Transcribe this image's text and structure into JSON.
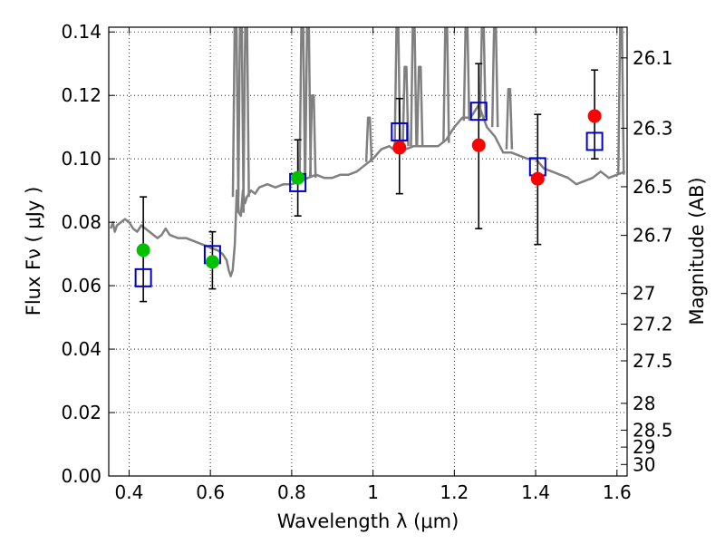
{
  "chart_data": {
    "type": "scatter",
    "xlabel": "Wavelength  λ (μm)",
    "ylabel": "Flux  Fν  ( μJy )",
    "y2label": "Magnitude (AB)",
    "xlim": [
      0.35,
      1.625
    ],
    "ylim": [
      0.0,
      0.1415
    ],
    "grid": true,
    "grid_style": "dotted",
    "x_ticks": [
      0.4,
      0.6,
      0.8,
      1.0,
      1.2,
      1.4,
      1.6
    ],
    "x_tick_labels": [
      "0.4",
      "0.6",
      "0.8",
      "1",
      "1.2",
      "1.4",
      "1.6"
    ],
    "y_ticks": [
      0.0,
      0.02,
      0.04,
      0.06,
      0.08,
      0.1,
      0.12,
      0.14
    ],
    "y_tick_labels": [
      "0.00",
      "0.02",
      "0.04",
      "0.06",
      "0.08",
      "0.10",
      "0.12",
      "0.14"
    ],
    "mag_ticks": [
      26.1,
      26.3,
      26.5,
      26.7,
      27,
      27.2,
      27.5,
      28,
      28.5,
      29,
      30
    ],
    "mag_tick_labels": [
      "26.1",
      "26.3",
      "26.5",
      "26.7",
      "27",
      "27.2",
      "27.5",
      "28",
      "28.5",
      "29",
      "30"
    ],
    "mag_zero_point": 23.9,
    "colors": {
      "spectrum": "#808080",
      "green_points": "#00c000",
      "red_points": "#ff0000",
      "model_boxes": "#0000cc",
      "error_bars": "#000000"
    },
    "series": [
      {
        "kind": "spectrum-line",
        "x": [
          0.355,
          0.36,
          0.365,
          0.37,
          0.38,
          0.39,
          0.4,
          0.41,
          0.42,
          0.43,
          0.44,
          0.45,
          0.46,
          0.47,
          0.48,
          0.49,
          0.5,
          0.52,
          0.54,
          0.56,
          0.58,
          0.6,
          0.62,
          0.63,
          0.64,
          0.645,
          0.65,
          0.655,
          0.66,
          0.665,
          0.67,
          0.675,
          0.68,
          0.685,
          0.69,
          0.7,
          0.71,
          0.72,
          0.74,
          0.76,
          0.78,
          0.8,
          0.82,
          0.84,
          0.86,
          0.88,
          0.9,
          0.92,
          0.94,
          0.96,
          0.98,
          1.0,
          1.02,
          1.04,
          1.05,
          1.06,
          1.08,
          1.1,
          1.12,
          1.14,
          1.16,
          1.18,
          1.2,
          1.22,
          1.24,
          1.26,
          1.28,
          1.3,
          1.32,
          1.34,
          1.36,
          1.38,
          1.4,
          1.42,
          1.44,
          1.46,
          1.48,
          1.5,
          1.52,
          1.54,
          1.56,
          1.58,
          1.6,
          1.62
        ],
        "y": [
          0.078,
          0.08,
          0.077,
          0.079,
          0.08,
          0.081,
          0.08,
          0.078,
          0.077,
          0.079,
          0.078,
          0.077,
          0.076,
          0.075,
          0.076,
          0.078,
          0.076,
          0.075,
          0.075,
          0.074,
          0.073,
          0.072,
          0.071,
          0.07,
          0.068,
          0.065,
          0.063,
          0.065,
          0.073,
          0.09,
          0.083,
          0.082,
          0.09,
          0.086,
          0.088,
          0.09,
          0.089,
          0.091,
          0.092,
          0.091,
          0.092,
          0.092,
          0.093,
          0.094,
          0.095,
          0.094,
          0.094,
          0.095,
          0.095,
          0.096,
          0.098,
          0.1,
          0.103,
          0.104,
          0.103,
          0.102,
          0.103,
          0.104,
          0.104,
          0.104,
          0.104,
          0.106,
          0.11,
          0.113,
          0.113,
          0.117,
          0.11,
          0.107,
          0.102,
          0.102,
          0.101,
          0.1,
          0.1,
          0.097,
          0.096,
          0.095,
          0.094,
          0.092,
          0.093,
          0.094,
          0.096,
          0.094,
          0.095,
          0.096
        ]
      },
      {
        "kind": "spectrum-spikes",
        "x": [
          0.662,
          0.675,
          0.688,
          0.826,
          0.84,
          0.852,
          0.99,
          1.06,
          1.08,
          1.1,
          1.115,
          1.18,
          1.23,
          1.27,
          1.3,
          1.335,
          1.61
        ],
        "base": [
          0.088,
          0.083,
          0.088,
          0.093,
          0.094,
          0.094,
          0.099,
          0.103,
          0.104,
          0.104,
          0.104,
          0.105,
          0.112,
          0.113,
          0.11,
          0.103,
          0.095
        ],
        "peak": [
          0.142,
          0.142,
          0.142,
          0.142,
          0.142,
          0.12,
          0.113,
          0.142,
          0.129,
          0.142,
          0.129,
          0.142,
          0.142,
          0.142,
          0.142,
          0.122,
          0.142
        ]
      },
      {
        "kind": "error-bars",
        "x": [
          0.435,
          0.605,
          0.815,
          1.065,
          1.26,
          1.405,
          1.545
        ],
        "lo": [
          0.055,
          0.059,
          0.082,
          0.089,
          0.078,
          0.073,
          0.1
        ],
        "hi": [
          0.088,
          0.077,
          0.106,
          0.119,
          0.13,
          0.114,
          0.128
        ]
      },
      {
        "kind": "model-boxes",
        "x": [
          0.435,
          0.605,
          0.815,
          1.065,
          1.26,
          1.405,
          1.545
        ],
        "y": [
          0.0625,
          0.0698,
          0.0925,
          0.1085,
          0.115,
          0.0975,
          0.1055
        ]
      },
      {
        "kind": "green-points",
        "x": [
          0.435,
          0.605,
          0.815
        ],
        "y": [
          0.0712,
          0.0675,
          0.094
        ]
      },
      {
        "kind": "red-points",
        "x": [
          1.065,
          1.26,
          1.405,
          1.545
        ],
        "y": [
          0.1035,
          0.1043,
          0.0937,
          0.1135
        ]
      }
    ]
  }
}
